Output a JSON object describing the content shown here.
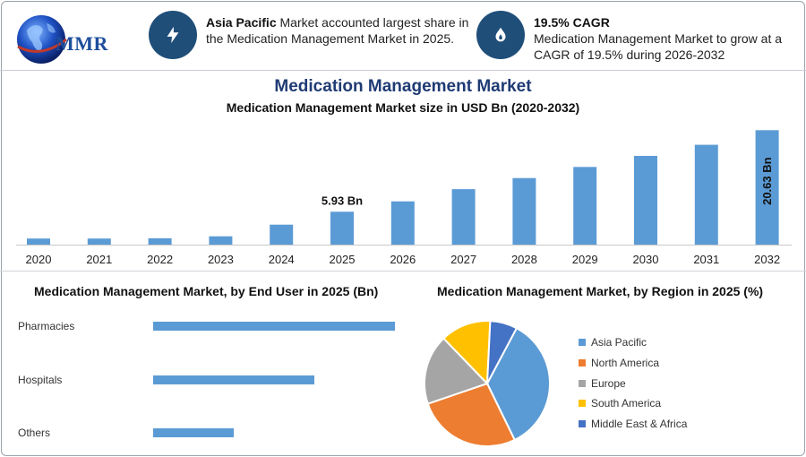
{
  "brand": {
    "logo_text": "MMR"
  },
  "highlights": [
    {
      "icon": "lightning-bolt-icon",
      "bold": "Asia Pacific",
      "text": " Market accounted largest share in the Medication Management Market in 2025."
    },
    {
      "icon": "flame-drop-icon",
      "bold": "19.5% CAGR",
      "text": "Medication Management Market to grow at a CAGR of 19.5% during 2026-2032"
    }
  ],
  "colors": {
    "bar": "#5b9bd5",
    "header_circle": "#1f4e79",
    "title": "#1f3b73"
  },
  "chart_data": [
    {
      "type": "bar",
      "title": "Medication Management Market",
      "subtitle": "Medication Management Market size in USD Bn (2020-2032)",
      "categories": [
        "2020",
        "2021",
        "2022",
        "2023",
        "2024",
        "2025",
        "2026",
        "2027",
        "2028",
        "2029",
        "2030",
        "2031",
        "2032"
      ],
      "values": [
        1.1,
        1.1,
        1.15,
        1.5,
        3.6,
        5.93,
        7.8,
        10.0,
        12.0,
        14.0,
        16.0,
        18.0,
        20.63
      ],
      "data_labels": [
        {
          "index": 5,
          "text": "5.93 Bn"
        },
        {
          "index": 12,
          "text": "20.63 Bn"
        }
      ],
      "ylim": [
        0,
        21
      ],
      "grid": false
    },
    {
      "type": "bar",
      "orientation": "horizontal",
      "title": "Medication Management Market, by End User in 2025 (Bn)",
      "categories": [
        "Pharmacies",
        "Hospitals",
        "Others"
      ],
      "values": [
        3.0,
        2.0,
        1.0
      ],
      "grid": false
    },
    {
      "type": "pie",
      "title": "Medication Management Market, by Region in 2025 (%)",
      "labels": [
        "Asia Pacific",
        "North America",
        "Europe",
        "South America",
        "Middle East & Africa"
      ],
      "values": [
        35,
        27,
        18,
        13,
        7
      ],
      "colors": [
        "#5b9bd5",
        "#ed7d31",
        "#a5a5a5",
        "#ffc000",
        "#4472c4"
      ],
      "legend": "right"
    }
  ]
}
